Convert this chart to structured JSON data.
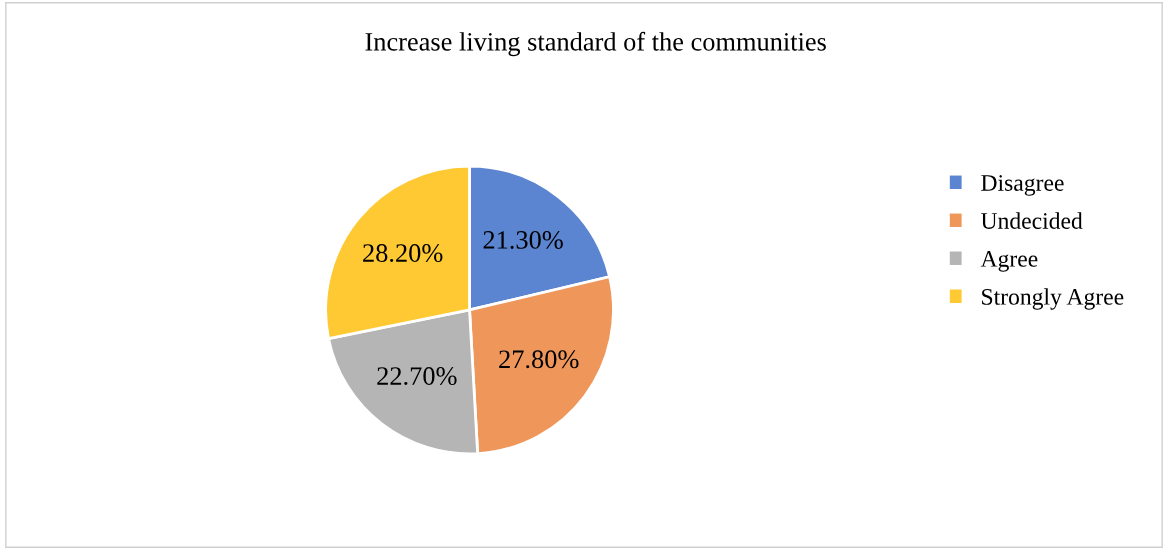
{
  "chart_data": {
    "type": "pie",
    "title": "Increase living standard of the communities",
    "categories": [
      "Disagree",
      "Undecided",
      "Agree",
      "Strongly Agree"
    ],
    "values": [
      21.3,
      27.8,
      22.7,
      28.2
    ],
    "value_labels": [
      "21.30%",
      "27.80%",
      "22.70%",
      "28.20%"
    ],
    "colors": [
      "#5b85d0",
      "#ef965a",
      "#b5b5b5",
      "#ffc933"
    ],
    "legend": "right"
  }
}
